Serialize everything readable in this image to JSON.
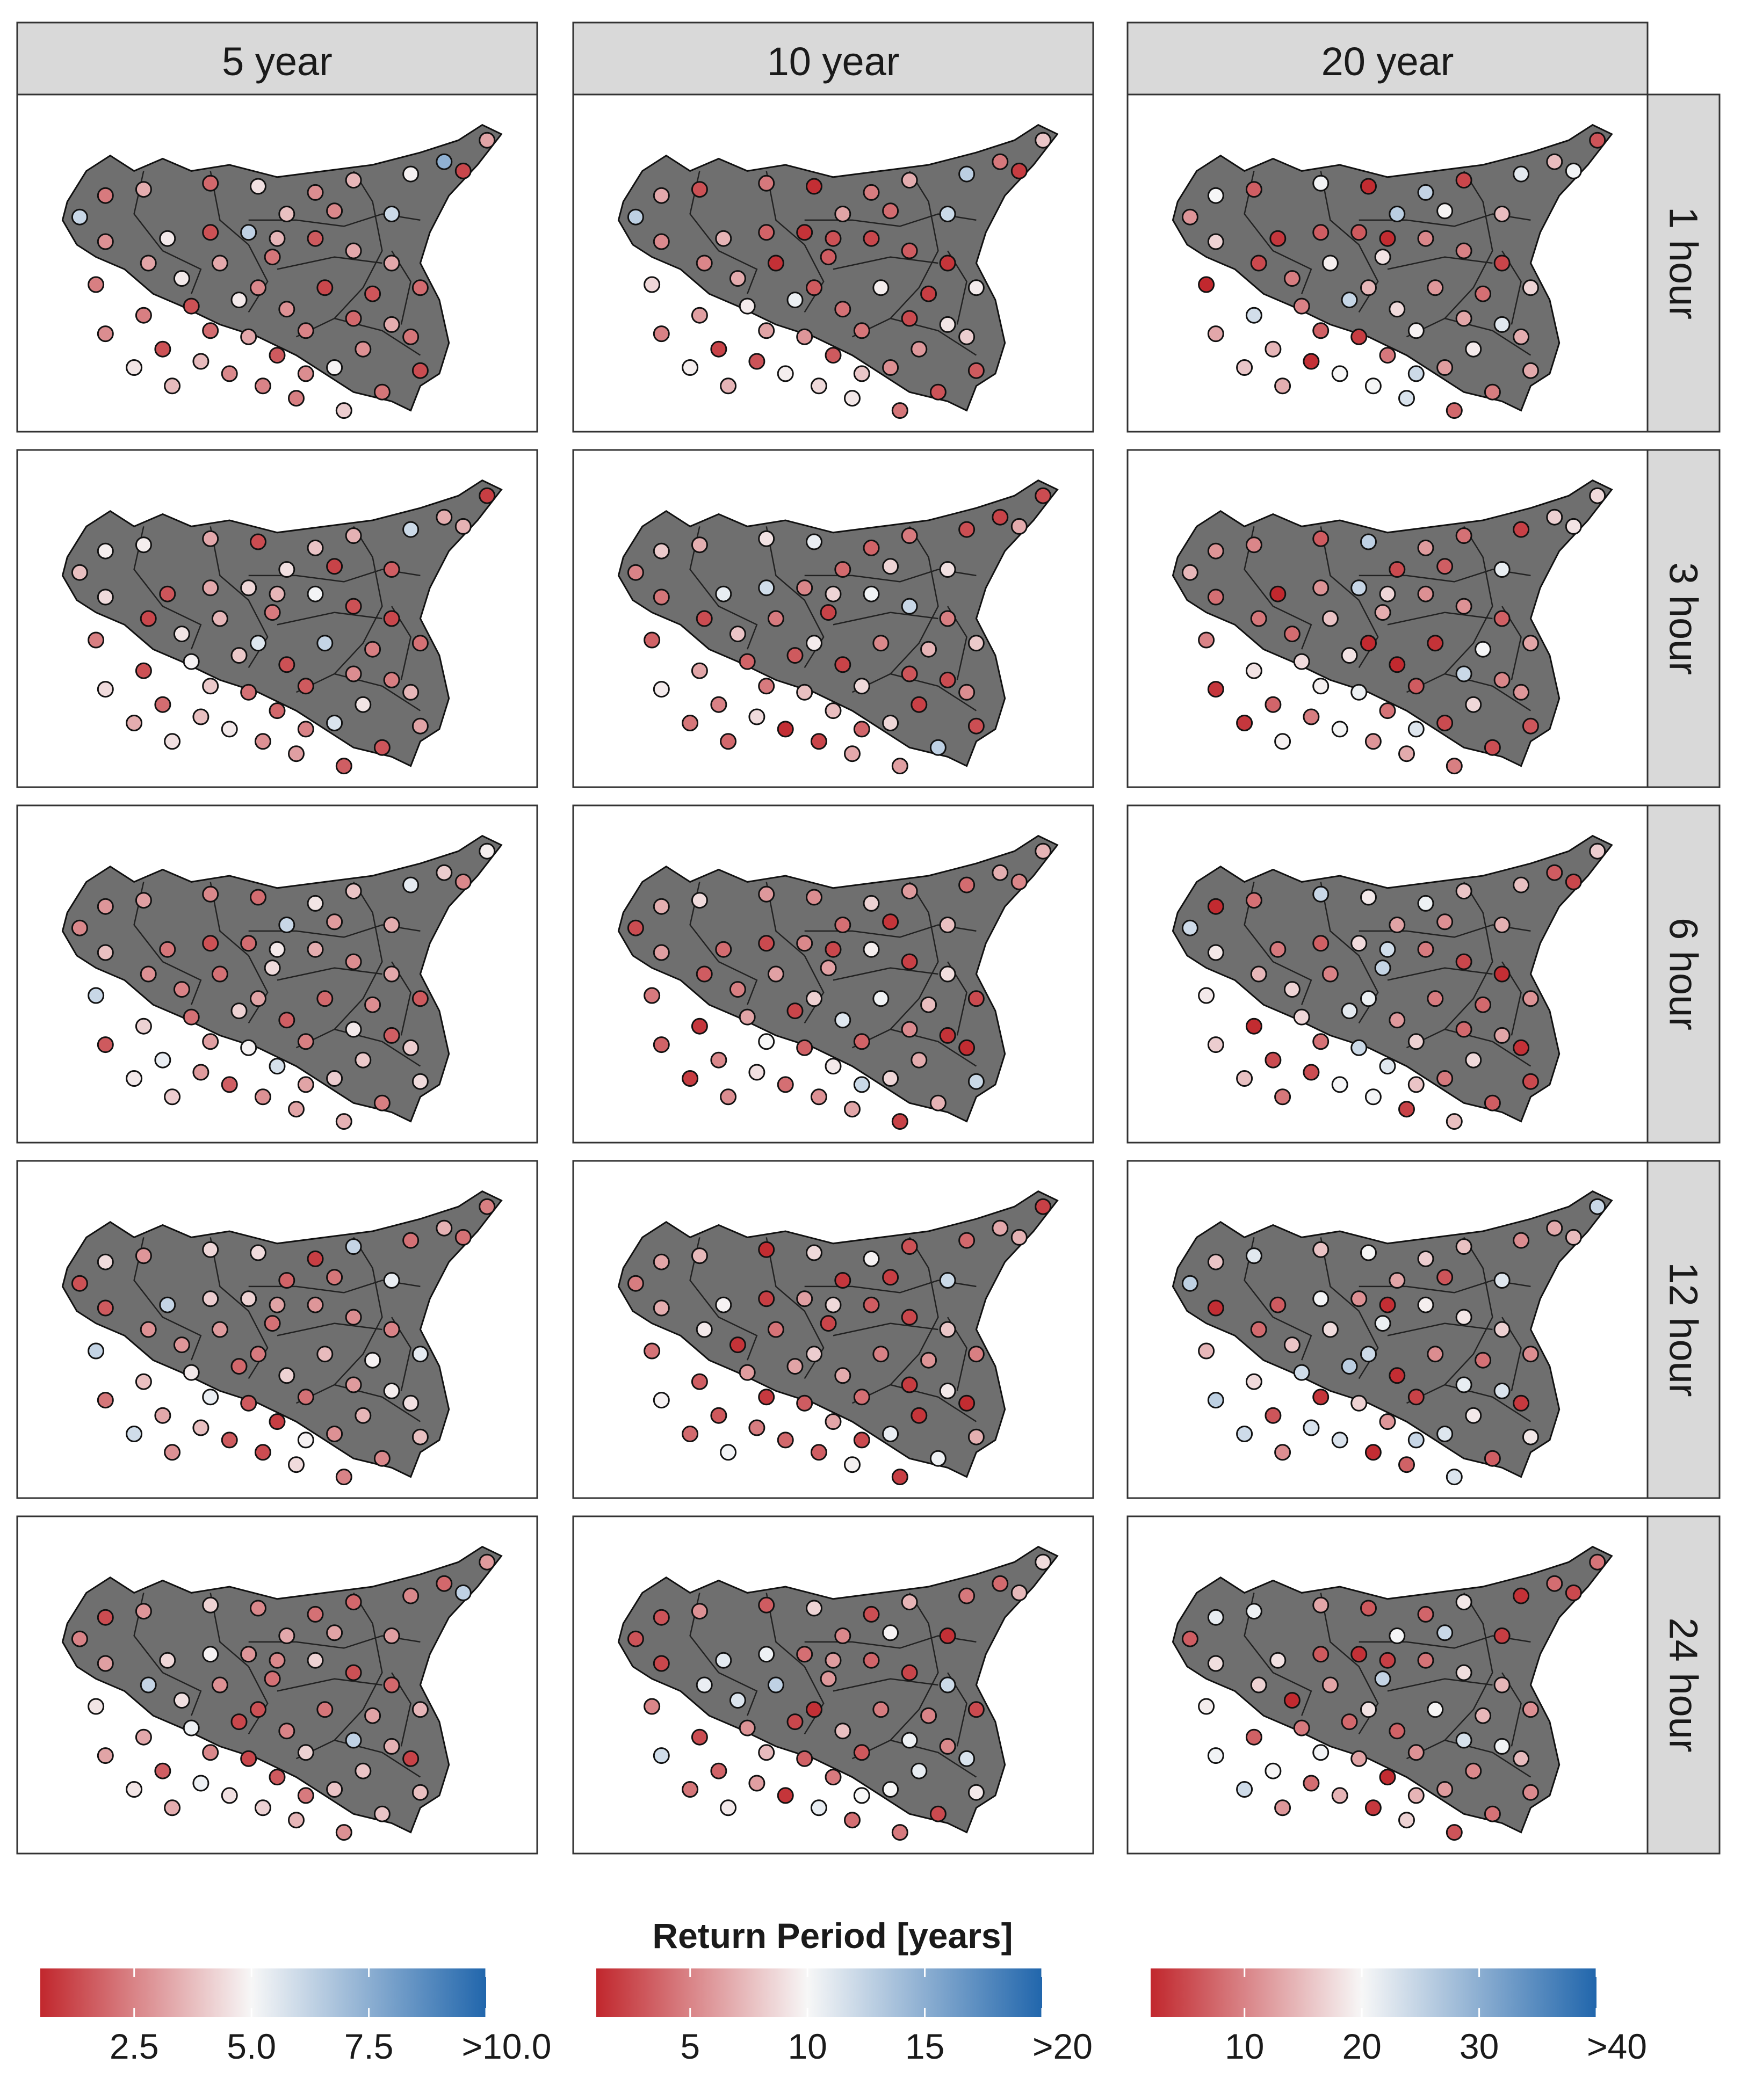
{
  "chart_data": {
    "type": "scatter",
    "title": "",
    "col_labels": [
      "5 year",
      "10 year",
      "20 year"
    ],
    "row_labels": [
      "1 hour",
      "3 hour",
      "6 hour",
      "12 hour",
      "24 hour"
    ],
    "map_fill": "#6f6f6f",
    "legend": {
      "title": "Return Period [years]",
      "placement": "bottom",
      "colors": {
        "low": "#c1272d",
        "mid": "#f7f7f7",
        "high": "#2166ac"
      },
      "scales": [
        {
          "column": "5 year",
          "min": 0.5,
          "max": 10,
          "mid": 5,
          "ticks": [
            2.5,
            5.0,
            7.5,
            10.0
          ],
          "tick_labels": [
            "2.5",
            "5.0",
            "7.5",
            ">10.0"
          ]
        },
        {
          "column": "10 year",
          "min": 1,
          "max": 20,
          "mid": 10,
          "ticks": [
            5,
            10,
            15,
            20
          ],
          "tick_labels": [
            "5",
            "10",
            "15",
            ">20"
          ]
        },
        {
          "column": "20 year",
          "min": 2,
          "max": 40,
          "mid": 20,
          "ticks": [
            10,
            20,
            30,
            40
          ],
          "tick_labels": [
            "10",
            "20",
            "30",
            ">40"
          ]
        }
      ]
    },
    "stations": [
      [
        0.086,
        0.35
      ],
      [
        0.14,
        0.28
      ],
      [
        0.14,
        0.43
      ],
      [
        0.22,
        0.26
      ],
      [
        0.36,
        0.24
      ],
      [
        0.46,
        0.25
      ],
      [
        0.58,
        0.27
      ],
      [
        0.66,
        0.23
      ],
      [
        0.78,
        0.21
      ],
      [
        0.85,
        0.17
      ],
      [
        0.94,
        0.1
      ],
      [
        0.89,
        0.2
      ],
      [
        0.74,
        0.34
      ],
      [
        0.62,
        0.33
      ],
      [
        0.52,
        0.34
      ],
      [
        0.44,
        0.4
      ],
      [
        0.36,
        0.4
      ],
      [
        0.27,
        0.42
      ],
      [
        0.23,
        0.5
      ],
      [
        0.12,
        0.57
      ],
      [
        0.14,
        0.73
      ],
      [
        0.22,
        0.67
      ],
      [
        0.3,
        0.55
      ],
      [
        0.38,
        0.5
      ],
      [
        0.49,
        0.48
      ],
      [
        0.58,
        0.42
      ],
      [
        0.66,
        0.46
      ],
      [
        0.74,
        0.5
      ],
      [
        0.8,
        0.58
      ],
      [
        0.74,
        0.7
      ],
      [
        0.68,
        0.78
      ],
      [
        0.62,
        0.84
      ],
      [
        0.56,
        0.86
      ],
      [
        0.5,
        0.8
      ],
      [
        0.44,
        0.74
      ],
      [
        0.36,
        0.72
      ],
      [
        0.32,
        0.64
      ],
      [
        0.42,
        0.62
      ],
      [
        0.52,
        0.65
      ],
      [
        0.6,
        0.58
      ],
      [
        0.7,
        0.6
      ],
      [
        0.78,
        0.74
      ],
      [
        0.8,
        0.85
      ],
      [
        0.72,
        0.92
      ],
      [
        0.64,
        0.98
      ],
      [
        0.54,
        0.94
      ],
      [
        0.47,
        0.9
      ],
      [
        0.4,
        0.86
      ],
      [
        0.34,
        0.82
      ],
      [
        0.26,
        0.78
      ],
      [
        0.2,
        0.84
      ],
      [
        0.28,
        0.9
      ],
      [
        0.56,
        0.72
      ],
      [
        0.66,
        0.68
      ],
      [
        0.46,
        0.58
      ],
      [
        0.5,
        0.42
      ]
    ],
    "panels": [
      {
        "column": "5 year",
        "row": "1 hour",
        "values": [
          6.1,
          2.3,
          2.8,
          3.4,
          1.9,
          4.5,
          2.7,
          3.6,
          4.9,
          7.4,
          3.2,
          1.2,
          6,
          2.6,
          3.8,
          6.3,
          1.4,
          4.7,
          3.2,
          2.4,
          2.7,
          2.4,
          4.7,
          3.3,
          2.2,
          1.6,
          3.3,
          3.3,
          2,
          3.4,
          2.8,
          4.9,
          2.7,
          1.6,
          3.3,
          2,
          1.4,
          4.7,
          2.8,
          1.2,
          1.5,
          2.2,
          1.3,
          2.2,
          4.1,
          2.4,
          2.5,
          2.6,
          3.7,
          1.4,
          4.6,
          3.7,
          2.5,
          1.9,
          2.6,
          3.6
        ]
      },
      {
        "column": "5 year",
        "row": "3 hour",
        "values": [
          3.8,
          4.8,
          4.4,
          4.8,
          3.3,
          1.3,
          3.9,
          3.5,
          6,
          3.4,
          1,
          3.5,
          1.7,
          1.1,
          4.5,
          4.3,
          3.3,
          1.5,
          1.2,
          2.4,
          4.4,
          1.4,
          4.6,
          3.6,
          2.3,
          5.1,
          1.4,
          1.2,
          2.1,
          2.4,
          4.6,
          5.7,
          2.5,
          1.9,
          2.1,
          4,
          4.9,
          4,
          1.4,
          6.2,
          2.4,
          3.6,
          3.2,
          1.5,
          1.7,
          3.1,
          2.8,
          4.7,
          3.8,
          2,
          3.4,
          4.5,
          1.6,
          2.7,
          5.6,
          3.6
        ]
      },
      {
        "column": "5 year",
        "row": "6 hour",
        "values": [
          2.6,
          2.9,
          3.8,
          3.1,
          2.6,
          2,
          4.6,
          3.9,
          5.4,
          4.1,
          4.8,
          2.6,
          3.4,
          3,
          6.1,
          2,
          1.4,
          2.2,
          2.8,
          6.1,
          1.6,
          4.2,
          2.5,
          2.1,
          4.4,
          3.4,
          2.7,
          3.3,
          1.6,
          1.7,
          4,
          4.1,
          3.2,
          5.8,
          4.9,
          3.1,
          2.1,
          4.2,
          1.7,
          1.9,
          2.7,
          4.1,
          4.4,
          2.4,
          3.5,
          3.2,
          2.8,
          1.7,
          3,
          5.3,
          4.7,
          4.1,
          2.4,
          4.7,
          3.2,
          4.7
        ]
      },
      {
        "column": "5 year",
        "row": "12 hour",
        "values": [
          1.4,
          4.4,
          1.6,
          2.9,
          4.3,
          4.4,
          1,
          6.2,
          2.1,
          3.5,
          2.4,
          2.1,
          5.3,
          2.2,
          1.8,
          4.2,
          4.1,
          6.2,
          2.8,
          6.2,
          2.2,
          3.8,
          2.9,
          3,
          2.1,
          2.9,
          2.7,
          2.5,
          5.4,
          4.8,
          3.6,
          2.8,
          4.9,
          1,
          1.6,
          5.3,
          4.7,
          1.9,
          4.2,
          3.7,
          4.9,
          4.5,
          3.8,
          2.6,
          2.5,
          4.4,
          1.3,
          1.6,
          3.8,
          3.3,
          5.9,
          2.8,
          2.1,
          3,
          2.3,
          3.2
        ]
      },
      {
        "column": "5 year",
        "row": "24 hour",
        "values": [
          2.5,
          1.3,
          3.1,
          2.9,
          4.2,
          2.6,
          2.1,
          1.9,
          2.6,
          1.9,
          3,
          6.3,
          3.1,
          3.2,
          3.3,
          2.9,
          4.9,
          4.3,
          6.2,
          4.6,
          3.2,
          3.3,
          4.5,
          2.8,
          2.1,
          4.2,
          1.4,
          1.9,
          3.6,
          3.5,
          3.9,
          3.9,
          2.3,
          1.6,
          1.2,
          2.6,
          5.2,
          1.2,
          2.5,
          2.2,
          3.2,
          1.1,
          3.8,
          3.9,
          2.8,
          3.6,
          4.2,
          4.5,
          5.2,
          1.7,
          4.6,
          3.4,
          4.2,
          6.3,
          1.4,
          2.6
        ]
      },
      {
        "column": "10 year",
        "row": "1 hour",
        "values": [
          12.7,
          6.6,
          5.3,
          2.8,
          4.5,
          1.3,
          4.7,
          6.8,
          12.8,
          4.5,
          7.9,
          1.9,
          12.1,
          4,
          6.4,
          1.5,
          3.6,
          7.1,
          5.1,
          8.6,
          4.9,
          6.2,
          6.7,
          1.4,
          3.3,
          2.4,
          3.3,
          1.6,
          9.5,
          9.2,
          5.9,
          5.5,
          7.9,
          3.2,
          5.8,
          6.4,
          9.5,
          10.5,
          4.2,
          9.6,
          2,
          8.2,
          3.2,
          2.9,
          4.4,
          9.3,
          8.7,
          9.6,
          2.9,
          2.2,
          9.6,
          7.1,
          4.4,
          2.5,
          3.2,
          2.8
        ]
      },
      {
        "column": "10 year",
        "row": "3 hour",
        "values": [
          5,
          8.1,
          4.4,
          6.9,
          9.1,
          10.6,
          3.6,
          4.6,
          2.7,
          2.2,
          2.6,
          6.7,
          9,
          8.5,
          3.9,
          5.1,
          11.8,
          10.7,
          2.6,
          3.6,
          9.5,
          6.5,
          7.8,
          4.6,
          2.2,
          10.3,
          12.2,
          4.8,
          8,
          2.6,
          2.1,
          8.6,
          3.7,
          7.5,
          7.6,
          4.6,
          3.6,
          3.2,
          2.2,
          5.2,
          7.1,
          5.4,
          2.7,
          12.6,
          6.2,
          6.6,
          2.3,
          1.3,
          8.8,
          4.9,
          4.4,
          3.8,
          8.7,
          3,
          9.5,
          8.5
        ]
      },
      {
        "column": "10 year",
        "row": "6 hour",
        "values": [
          2.6,
          6.9,
          6.2,
          8.8,
          5.9,
          5.4,
          8.4,
          6,
          4,
          6.9,
          7.1,
          5.1,
          7.6,
          1.6,
          4.1,
          5.2,
          2.5,
          4,
          3.3,
          4.6,
          3.6,
          1.7,
          4.8,
          6.3,
          6.3,
          9.6,
          2.1,
          8.9,
          2.5,
          1.5,
          6.7,
          8.6,
          12.1,
          9.4,
          3.5,
          10,
          6.4,
          2.3,
          11.1,
          10.3,
          7.5,
          1.2,
          12.1,
          7,
          2.2,
          6.5,
          5.6,
          4.1,
          9,
          5.2,
          1.9,
          5.4,
          3.6,
          5.3,
          8.3,
          2.4
        ]
      },
      {
        "column": "10 year",
        "row": "12 hour",
        "values": [
          4.7,
          6.5,
          6.8,
          7.3,
          1.2,
          8.7,
          9.8,
          2.8,
          3.8,
          6.6,
          2.1,
          7,
          12.1,
          2,
          1.7,
          6.2,
          2,
          9.8,
          9.4,
          4.3,
          9.8,
          3.4,
          1.5,
          4.3,
          2.3,
          3.3,
          2.4,
          7.9,
          4.8,
          9.4,
          1.6,
          10.6,
          2.5,
          6.5,
          3.3,
          1.8,
          6.1,
          6.4,
          6.7,
          4.9,
          5.7,
          1.2,
          6.9,
          10.4,
          2,
          9.7,
          3.4,
          3.8,
          4.7,
          3.1,
          3.9,
          10.2,
          4.1,
          1.9,
          8.2,
          8.7
        ]
      },
      {
        "column": "10 year",
        "row": "24 hour",
        "values": [
          2.9,
          2.9,
          2.4,
          5.6,
          3.3,
          8.5,
          2.7,
          7.1,
          4.5,
          3.9,
          8.8,
          7.3,
          1.4,
          9.8,
          5.2,
          4.1,
          10.4,
          10.9,
          10.6,
          5.1,
          11.8,
          2.6,
          11.3,
          12.6,
          5.9,
          3.7,
          2.3,
          12,
          2.5,
          5.2,
          10.7,
          10,
          10,
          4.6,
          3.5,
          7.4,
          5.7,
          2.4,
          7.6,
          4.7,
          5,
          11.4,
          9.4,
          2.5,
          4.6,
          4.1,
          10.7,
          1.6,
          6.2,
          3.6,
          4.4,
          9.4,
          3.1,
          10.4,
          1.4,
          6.1
        ]
      },
      {
        "column": "20 year",
        "row": "1 hour",
        "values": [
          11.5,
          20.1,
          16.9,
          6.8,
          20.5,
          2.4,
          24.9,
          4.7,
          21.8,
          14.9,
          5.8,
          20.6,
          15,
          19.7,
          25.7,
          6.4,
          6.7,
          3.4,
          4.9,
          2.1,
          13.1,
          23.5,
          9.4,
          19.3,
          18.3,
          10.3,
          9.8,
          4.6,
          17,
          22.1,
          18.9,
          12.2,
          24,
          9,
          3.9,
          6.9,
          9.9,
          24.6,
          17.5,
          11.7,
          8.2,
          13.6,
          13.3,
          9.4,
          7.6,
          22.8,
          20.2,
          19.9,
          2.7,
          14.4,
          15.8,
          13.7,
          19.6,
          13,
          14.5,
          2.4
        ]
      },
      {
        "column": "20 year",
        "row": "3 hour",
        "values": [
          14.5,
          11.4,
          8.2,
          10.2,
          6.5,
          25.2,
          12,
          8.4,
          4.2,
          16.6,
          17.5,
          18.3,
          21.3,
          6.8,
          5,
          24.5,
          11.4,
          2.1,
          8.9,
          10,
          3.3,
          18.3,
          8,
          15.5,
          13.6,
          11.1,
          11.3,
          6.9,
          12.9,
          10.3,
          17.2,
          5.1,
          22.3,
          8.6,
          21,
          19.4,
          17.6,
          18.3,
          2.2,
          3,
          20.1,
          11.7,
          6.1,
          5.4,
          9.6,
          13.4,
          11.5,
          20.2,
          9.4,
          7.4,
          3.4,
          19.5,
          6.5,
          24.3,
          2.3,
          17.1
        ]
      },
      {
        "column": "20 year",
        "row": "6 hour",
        "values": [
          23.8,
          2.3,
          18.7,
          8.3,
          24.4,
          18.8,
          20.8,
          15.6,
          15.3,
          6.6,
          16.4,
          4.8,
          13.9,
          11.1,
          12.7,
          17.5,
          6.9,
          9.1,
          14.5,
          18.8,
          16.4,
          2.4,
          17,
          9.9,
          24.7,
          9.3,
          4.8,
          2.6,
          11.4,
          12.9,
          17.4,
          9.1,
          15.6,
          22.2,
          24,
          8.5,
          17.2,
          21.8,
          11.9,
          9.3,
          7.7,
          2.9,
          4.9,
          6.7,
          15.2,
          4.3,
          20.4,
          20.1,
          5.3,
          5.1,
          15.3,
          8.9,
          16.7,
          7.7,
          21,
          23.6
        ]
      },
      {
        "column": "20 year",
        "row": "12 hour",
        "values": [
          25.3,
          15.6,
          2.5,
          22.1,
          15.5,
          20.2,
          16.4,
          15.3,
          10.8,
          13.3,
          24.3,
          14.8,
          22.2,
          5.9,
          12.9,
          11.2,
          20.4,
          6.5,
          7.8,
          14.5,
          25.3,
          17.5,
          15.6,
          17.7,
          21,
          19.3,
          18.5,
          16.6,
          10.9,
          22.6,
          18.8,
          22.4,
          24.5,
          11.6,
          16.7,
          3.2,
          23.6,
          25.6,
          2.5,
          10.8,
          8.4,
          3.6,
          18.7,
          6.8,
          22.5,
          7.1,
          2.5,
          22.7,
          22.8,
          6,
          23.8,
          10.9,
          4.3,
          21.4,
          24,
          2.6
        ]
      },
      {
        "column": "20 year",
        "row": "24 hour",
        "values": [
          6.7,
          21.5,
          17.8,
          20.8,
          13,
          6.3,
          7.4,
          18.7,
          2.9,
          8.1,
          8.7,
          4.9,
          4,
          24.3,
          20.3,
          2.9,
          6.4,
          18.1,
          16.8,
          19.1,
          20.6,
          7,
          2.3,
          12.9,
          24.8,
          8.6,
          17.8,
          14.4,
          11.1,
          20.6,
          10.5,
          12.1,
          14.2,
          2.4,
          12.8,
          20.4,
          9.1,
          7.6,
          7.1,
          19.8,
          14.5,
          14.8,
          10.6,
          8.5,
          5.9,
          16.9,
          3.5,
          14.2,
          8.1,
          19.8,
          23.7,
          11.7,
          11.3,
          23.1,
          18.1,
          4.1
        ]
      }
    ]
  }
}
